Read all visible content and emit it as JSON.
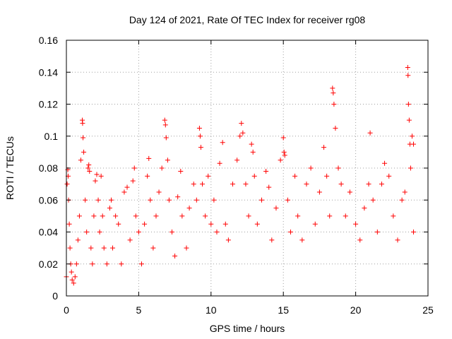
{
  "chart_data": {
    "type": "scatter",
    "title": "Day 124 of 2021, Rate Of TEC Index for receiver rg08",
    "xlabel": "GPS time / hours",
    "ylabel": "ROTI / TECUs",
    "xlim": [
      0,
      25
    ],
    "ylim": [
      0,
      0.16
    ],
    "xticks": [
      0,
      5,
      10,
      15,
      20,
      25
    ],
    "xtick_labels": [
      "0",
      "5",
      "10",
      "15",
      "20",
      "25"
    ],
    "yticks": [
      0,
      0.02,
      0.04,
      0.06,
      0.08,
      0.1,
      0.12,
      0.14,
      0.16
    ],
    "ytick_labels": [
      "0",
      "0.02",
      "0.04",
      "0.06",
      "0.08",
      "0.1",
      "0.12",
      "0.14",
      "0.16"
    ],
    "grid": true,
    "marker": "plus",
    "color": "#ff0000",
    "series": [
      {
        "points": [
          [
            0.0,
            0.012
          ],
          [
            0.05,
            0.07
          ],
          [
            0.1,
            0.079
          ],
          [
            0.12,
            0.075
          ],
          [
            0.15,
            0.06
          ],
          [
            0.2,
            0.045
          ],
          [
            0.25,
            0.03
          ],
          [
            0.3,
            0.02
          ],
          [
            0.35,
            0.015
          ],
          [
            0.4,
            0.01
          ],
          [
            0.5,
            0.008
          ],
          [
            0.6,
            0.012
          ],
          [
            0.7,
            0.02
          ],
          [
            0.8,
            0.035
          ],
          [
            0.9,
            0.05
          ],
          [
            1.0,
            0.085
          ],
          [
            1.1,
            0.11
          ],
          [
            1.12,
            0.108
          ],
          [
            1.15,
            0.099
          ],
          [
            1.2,
            0.09
          ],
          [
            1.3,
            0.06
          ],
          [
            1.4,
            0.04
          ],
          [
            1.5,
            0.08
          ],
          [
            1.55,
            0.082
          ],
          [
            1.6,
            0.078
          ],
          [
            1.7,
            0.03
          ],
          [
            1.8,
            0.02
          ],
          [
            1.9,
            0.05
          ],
          [
            2.0,
            0.072
          ],
          [
            2.1,
            0.076
          ],
          [
            2.2,
            0.06
          ],
          [
            2.3,
            0.04
          ],
          [
            2.4,
            0.075
          ],
          [
            2.5,
            0.05
          ],
          [
            2.6,
            0.03
          ],
          [
            2.8,
            0.02
          ],
          [
            3.0,
            0.055
          ],
          [
            3.1,
            0.06
          ],
          [
            3.2,
            0.03
          ],
          [
            3.4,
            0.05
          ],
          [
            3.6,
            0.045
          ],
          [
            3.8,
            0.02
          ],
          [
            4.0,
            0.065
          ],
          [
            4.2,
            0.068
          ],
          [
            4.4,
            0.035
          ],
          [
            4.6,
            0.072
          ],
          [
            4.7,
            0.08
          ],
          [
            4.8,
            0.05
          ],
          [
            5.0,
            0.04
          ],
          [
            5.2,
            0.02
          ],
          [
            5.4,
            0.045
          ],
          [
            5.6,
            0.075
          ],
          [
            5.7,
            0.086
          ],
          [
            5.8,
            0.06
          ],
          [
            6.0,
            0.03
          ],
          [
            6.2,
            0.05
          ],
          [
            6.4,
            0.065
          ],
          [
            6.6,
            0.08
          ],
          [
            6.8,
            0.11
          ],
          [
            6.85,
            0.107
          ],
          [
            6.9,
            0.099
          ],
          [
            7.0,
            0.085
          ],
          [
            7.1,
            0.06
          ],
          [
            7.3,
            0.04
          ],
          [
            7.5,
            0.025
          ],
          [
            7.7,
            0.062
          ],
          [
            7.9,
            0.078
          ],
          [
            8.0,
            0.05
          ],
          [
            8.3,
            0.03
          ],
          [
            8.5,
            0.055
          ],
          [
            8.8,
            0.07
          ],
          [
            9.0,
            0.06
          ],
          [
            9.2,
            0.105
          ],
          [
            9.25,
            0.1
          ],
          [
            9.3,
            0.093
          ],
          [
            9.4,
            0.07
          ],
          [
            9.6,
            0.05
          ],
          [
            9.8,
            0.075
          ],
          [
            10.0,
            0.045
          ],
          [
            10.2,
            0.06
          ],
          [
            10.4,
            0.04
          ],
          [
            10.6,
            0.083
          ],
          [
            10.8,
            0.096
          ],
          [
            11.0,
            0.045
          ],
          [
            11.2,
            0.035
          ],
          [
            11.5,
            0.07
          ],
          [
            11.8,
            0.085
          ],
          [
            12.0,
            0.1
          ],
          [
            12.1,
            0.108
          ],
          [
            12.2,
            0.102
          ],
          [
            12.4,
            0.07
          ],
          [
            12.6,
            0.05
          ],
          [
            12.8,
            0.095
          ],
          [
            12.9,
            0.09
          ],
          [
            13.0,
            0.075
          ],
          [
            13.2,
            0.045
          ],
          [
            13.5,
            0.06
          ],
          [
            13.8,
            0.078
          ],
          [
            14.0,
            0.068
          ],
          [
            14.2,
            0.035
          ],
          [
            14.5,
            0.055
          ],
          [
            14.8,
            0.085
          ],
          [
            15.0,
            0.099
          ],
          [
            15.05,
            0.09
          ],
          [
            15.1,
            0.088
          ],
          [
            15.3,
            0.06
          ],
          [
            15.5,
            0.04
          ],
          [
            15.8,
            0.075
          ],
          [
            16.0,
            0.05
          ],
          [
            16.3,
            0.035
          ],
          [
            16.6,
            0.07
          ],
          [
            16.9,
            0.08
          ],
          [
            17.2,
            0.045
          ],
          [
            17.5,
            0.065
          ],
          [
            17.8,
            0.093
          ],
          [
            18.0,
            0.075
          ],
          [
            18.2,
            0.05
          ],
          [
            18.4,
            0.13
          ],
          [
            18.45,
            0.127
          ],
          [
            18.5,
            0.12
          ],
          [
            18.6,
            0.105
          ],
          [
            18.8,
            0.08
          ],
          [
            19.0,
            0.07
          ],
          [
            19.3,
            0.05
          ],
          [
            19.6,
            0.065
          ],
          [
            20.0,
            0.045
          ],
          [
            20.3,
            0.035
          ],
          [
            20.6,
            0.055
          ],
          [
            20.9,
            0.07
          ],
          [
            21.0,
            0.102
          ],
          [
            21.2,
            0.06
          ],
          [
            21.5,
            0.04
          ],
          [
            21.8,
            0.07
          ],
          [
            22.0,
            0.083
          ],
          [
            22.3,
            0.075
          ],
          [
            22.6,
            0.05
          ],
          [
            22.9,
            0.035
          ],
          [
            23.2,
            0.06
          ],
          [
            23.4,
            0.065
          ],
          [
            23.6,
            0.143
          ],
          [
            23.62,
            0.138
          ],
          [
            23.65,
            0.12
          ],
          [
            23.7,
            0.11
          ],
          [
            23.75,
            0.095
          ],
          [
            23.8,
            0.08
          ],
          [
            23.9,
            0.1
          ],
          [
            24.0,
            0.095
          ],
          [
            24.0,
            0.04
          ]
        ]
      }
    ]
  }
}
